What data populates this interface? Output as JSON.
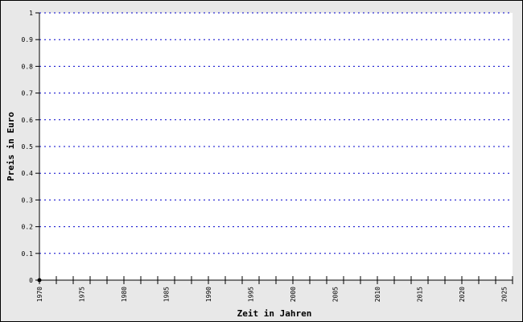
{
  "chart_data": {
    "type": "line",
    "title": "",
    "xlabel": "Zeit in Jahren",
    "ylabel": "Preis in Euro",
    "xlim": [
      1970,
      2026
    ],
    "ylim": [
      0,
      1
    ],
    "x_ticks": [
      1970,
      1975,
      1980,
      1985,
      1990,
      1995,
      2000,
      2005,
      2010,
      2015,
      2020,
      2025
    ],
    "y_ticks": [
      "0",
      "0.1",
      "0.2",
      "0.3",
      "0.4",
      "0.5",
      "0.6",
      "0.7",
      "0.8",
      "0.9",
      "1"
    ],
    "grid": true,
    "grid_color": "#0000cc",
    "background_color": "#e8e8e8",
    "series": [
      {
        "x": [
          1970
        ],
        "y": [
          0
        ]
      }
    ]
  }
}
